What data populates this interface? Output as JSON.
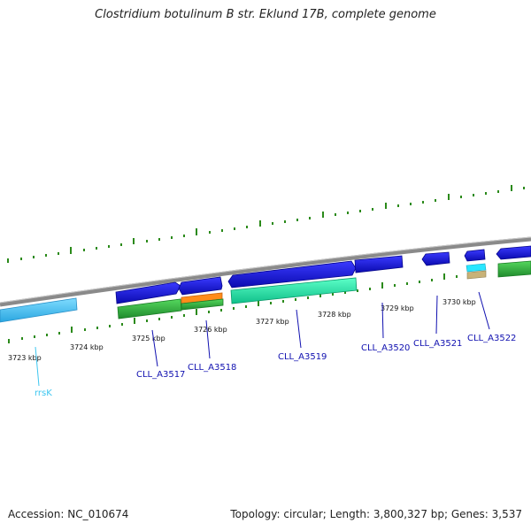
{
  "title": "Clostridium botulinum B str. Eklund 17B, complete genome",
  "accession": "Accession: NC_010674",
  "topology": "Topology: circular; Length: 3,800,327 bp; Genes: 3,537",
  "colors": {
    "backbone": "#8a8a8a",
    "tick": "#2b8a1a",
    "cds": "#1515d8",
    "rrna": "#4cc7f5",
    "cog_teal": "#22e8a8",
    "cog_green": "#3cb84a",
    "cog_orange": "#ff8c1a",
    "cog_cyan": "#29e6ff",
    "cog_tan": "#c8b278",
    "label_blue": "#1010b0",
    "label_cyan": "#3cc6f0"
  },
  "scale_labels": [
    "3723 kbp",
    "3724 kbp",
    "3725 kbp",
    "3726 kbp",
    "3727 kbp",
    "3728 kbp",
    "3729 kbp",
    "3730 kbp"
  ],
  "genes": [
    "rrsK",
    "CLL_A3517",
    "CLL_A3518",
    "CLL_A3519",
    "CLL_A3520",
    "CLL_A3521",
    "CLL_A3522"
  ]
}
